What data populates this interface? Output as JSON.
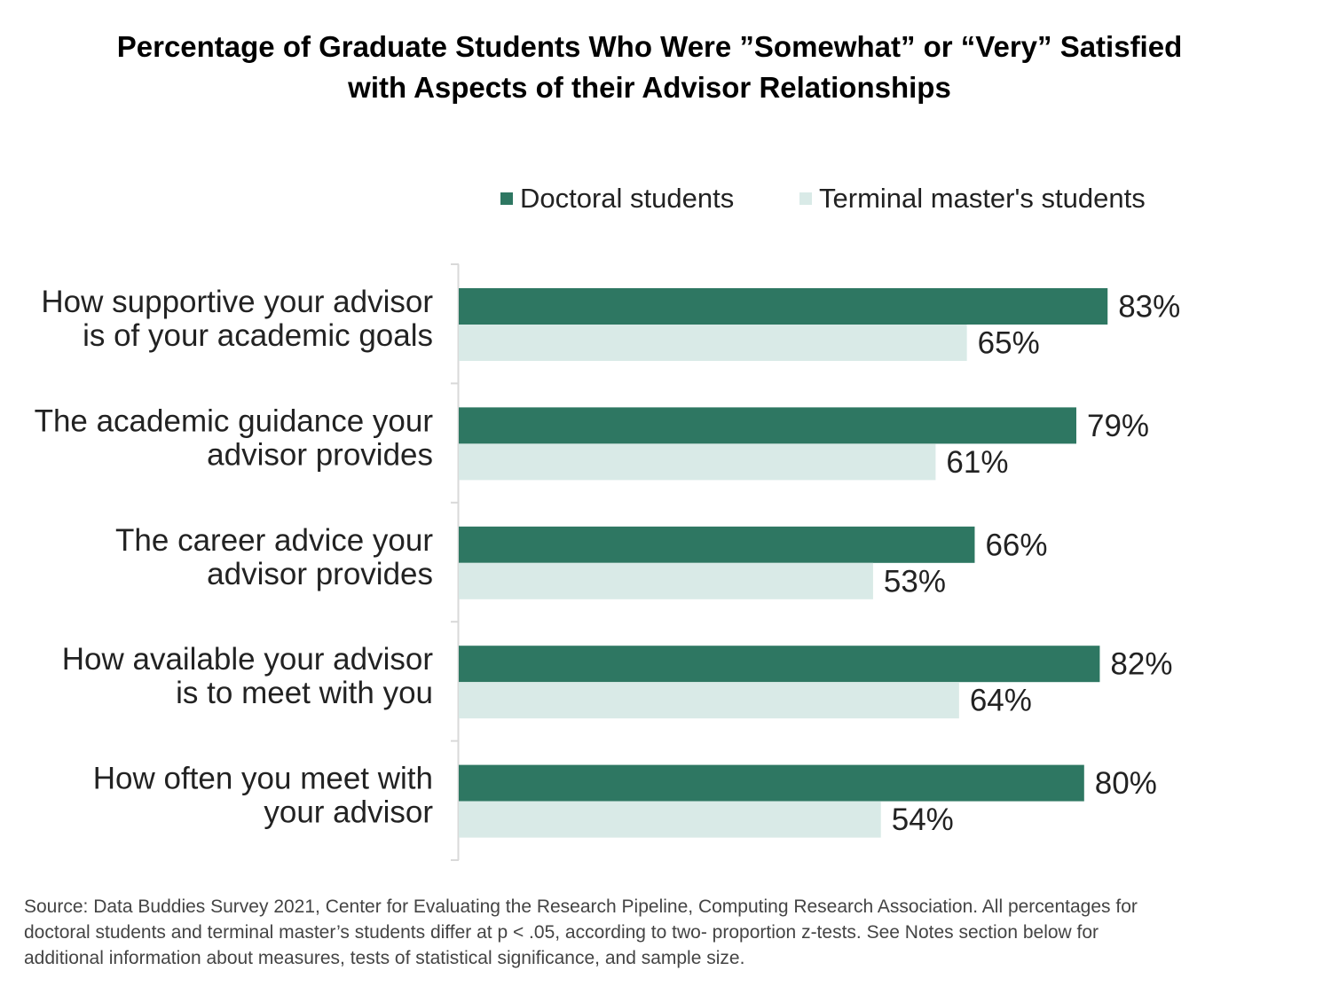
{
  "chart_data": {
    "type": "bar",
    "orientation": "horizontal",
    "title": [
      "Percentage of Graduate Students Who Were ”Somewhat” or “Very” Satisfied",
      "with Aspects of their Advisor Relationships"
    ],
    "categories": [
      [
        "How supportive your advisor",
        "is of your academic goals"
      ],
      [
        "The academic guidance your",
        "advisor provides"
      ],
      [
        "The career advice your",
        "advisor provides"
      ],
      [
        "How available your advisor",
        "is to meet with you"
      ],
      [
        "How often you meet with",
        "your advisor"
      ]
    ],
    "series": [
      {
        "name": "Doctoral students",
        "color": "#2e7762",
        "values": [
          83,
          79,
          66,
          82,
          80
        ]
      },
      {
        "name": "Terminal master's students",
        "color": "#d9eae7",
        "values": [
          65,
          61,
          53,
          64,
          54
        ]
      }
    ],
    "value_suffix": "%",
    "xlim": [
      0,
      100
    ],
    "xlabel": "",
    "ylabel": "",
    "grid": false,
    "legend_position": "top",
    "source": [
      "Source: Data Buddies Survey 2021, Center for Evaluating the Research Pipeline, Computing Research Association. All percentages for",
      "doctoral students and terminal master’s students differ at p < .05, according to two- proportion z-tests. See Notes section below for",
      "additional information about measures, tests of statistical significance, and sample size."
    ]
  }
}
